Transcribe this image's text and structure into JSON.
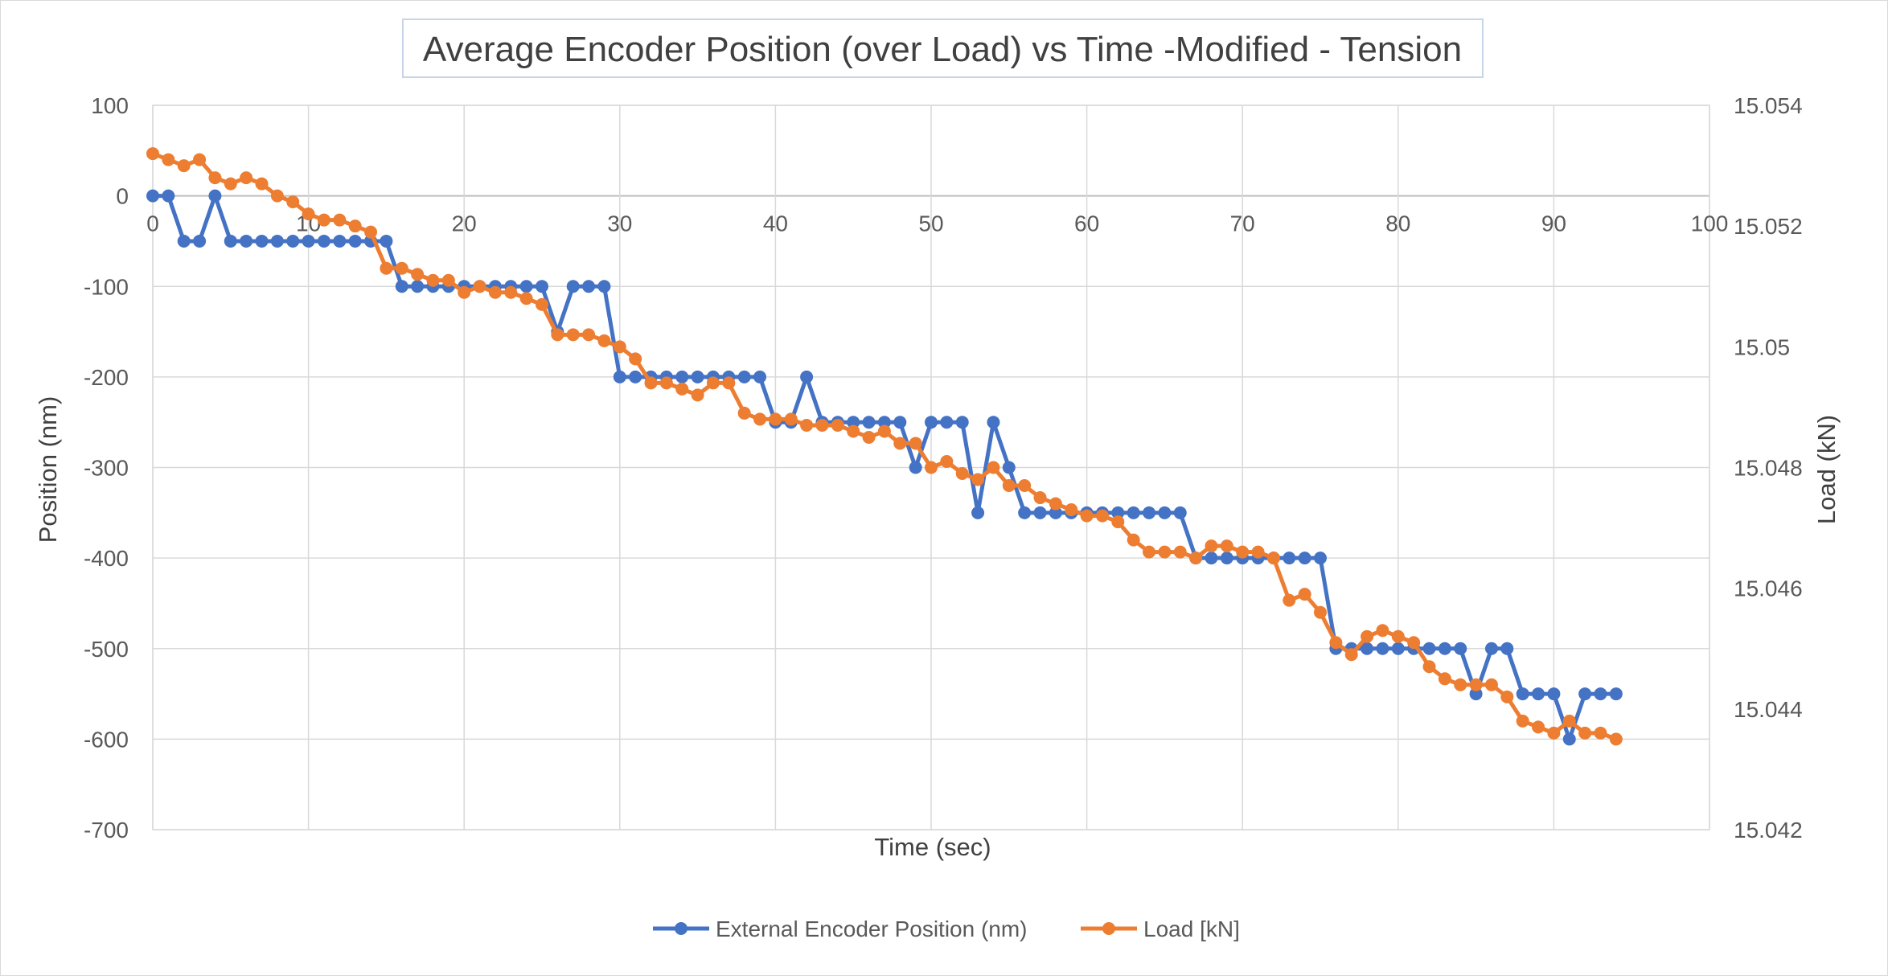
{
  "chart_data": {
    "type": "line",
    "title": "Average Encoder Position (over Load) vs Time -Modified - Tension",
    "xlabel": "Time (sec)",
    "ylabel": "Position (nm)",
    "y2label": "Load (kN)",
    "xlim": [
      0,
      100
    ],
    "ylim": [
      -700,
      100
    ],
    "y2lim": [
      15.042,
      15.054
    ],
    "x_ticks": [
      0,
      10,
      20,
      30,
      40,
      50,
      60,
      70,
      80,
      90,
      100
    ],
    "y_ticks": [
      100,
      0,
      -100,
      -200,
      -300,
      -400,
      -500,
      -600,
      -700
    ],
    "y2_ticks": [
      "15.054",
      "15.052",
      "15.05",
      "15.048",
      "15.046",
      "15.044",
      "15.042"
    ],
    "grid": true,
    "legend_position": "bottom",
    "x": [
      0,
      1,
      2,
      3,
      4,
      5,
      6,
      7,
      8,
      9,
      10,
      11,
      12,
      13,
      14,
      15,
      16,
      17,
      18,
      19,
      20,
      21,
      22,
      23,
      24,
      25,
      26,
      27,
      28,
      29,
      30,
      31,
      32,
      33,
      34,
      35,
      36,
      37,
      38,
      39,
      40,
      41,
      42,
      43,
      44,
      45,
      46,
      47,
      48,
      49,
      50,
      51,
      52,
      53,
      54,
      55,
      56,
      57,
      58,
      59,
      60,
      61,
      62,
      63,
      64,
      65,
      66,
      67,
      68,
      69,
      70,
      71,
      72,
      73,
      74,
      75,
      76,
      77,
      78,
      79,
      80,
      81,
      82,
      83,
      84,
      85,
      86,
      87,
      88,
      89,
      90,
      91,
      92,
      93,
      94
    ],
    "series": [
      {
        "name": "External Encoder Position (nm)",
        "axis": "left",
        "color": "#4472C4",
        "values": [
          0,
          0,
          -50,
          -50,
          0,
          -50,
          -50,
          -50,
          -50,
          -50,
          -50,
          -50,
          -50,
          -50,
          -50,
          -50,
          -100,
          -100,
          -100,
          -100,
          -100,
          -100,
          -100,
          -100,
          -100,
          -100,
          -150,
          -100,
          -100,
          -100,
          -200,
          -200,
          -200,
          -200,
          -200,
          -200,
          -200,
          -200,
          -200,
          -200,
          -250,
          -250,
          -200,
          -250,
          -250,
          -250,
          -250,
          -250,
          -250,
          -300,
          -250,
          -250,
          -250,
          -350,
          -250,
          -300,
          -350,
          -350,
          -350,
          -350,
          -350,
          -350,
          -350,
          -350,
          -350,
          -350,
          -350,
          -400,
          -400,
          -400,
          -400,
          -400,
          -400,
          -400,
          -400,
          -400,
          -500,
          -500,
          -500,
          -500,
          -500,
          -500,
          -500,
          -500,
          -500,
          -550,
          -500,
          -500,
          -550,
          -550,
          -550,
          -600,
          -550,
          -550,
          -550
        ]
      },
      {
        "name": "Load [kN]",
        "axis": "right",
        "color": "#ED7D31",
        "values": [
          15.0532,
          15.0531,
          15.053,
          15.0531,
          15.0528,
          15.0527,
          15.0528,
          15.0527,
          15.0525,
          15.0524,
          15.0522,
          15.0521,
          15.0521,
          15.052,
          15.0519,
          15.0513,
          15.0513,
          15.0512,
          15.0511,
          15.0511,
          15.0509,
          15.051,
          15.0509,
          15.0509,
          15.0508,
          15.0507,
          15.0502,
          15.0502,
          15.0502,
          15.0501,
          15.05,
          15.0498,
          15.0494,
          15.0494,
          15.0493,
          15.0492,
          15.0494,
          15.0494,
          15.0489,
          15.0488,
          15.0488,
          15.0488,
          15.0487,
          15.0487,
          15.0487,
          15.0486,
          15.0485,
          15.0486,
          15.0484,
          15.0484,
          15.048,
          15.0481,
          15.0479,
          15.0478,
          15.048,
          15.0477,
          15.0477,
          15.0475,
          15.0474,
          15.0473,
          15.0472,
          15.0472,
          15.0471,
          15.0468,
          15.0466,
          15.0466,
          15.0466,
          15.0465,
          15.0467,
          15.0467,
          15.0466,
          15.0466,
          15.0465,
          15.0458,
          15.0459,
          15.0456,
          15.0451,
          15.0449,
          15.0452,
          15.0453,
          15.0452,
          15.0451,
          15.0447,
          15.0445,
          15.0444,
          15.0444,
          15.0444,
          15.0442,
          15.0438,
          15.0437,
          15.0436,
          15.0438,
          15.0436,
          15.0436,
          15.0435
        ]
      }
    ]
  }
}
